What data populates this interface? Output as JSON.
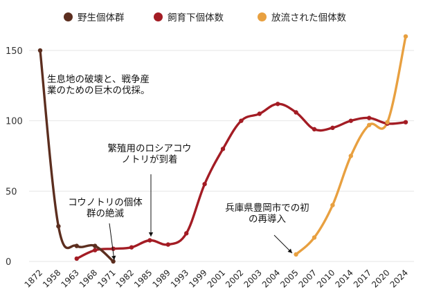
{
  "chart_data": {
    "type": "line",
    "categories": [
      "1872",
      "1958",
      "1963",
      "1968",
      "1971",
      "1982",
      "1985",
      "1989",
      "1993",
      "1999",
      "2001",
      "2002",
      "2003",
      "2004",
      "2005",
      "2007",
      "2010",
      "2014",
      "2017",
      "2020",
      "2024"
    ],
    "ylim": [
      0,
      160
    ],
    "yticks": [
      0,
      50,
      100,
      150
    ],
    "grid": true,
    "legend_position": "top-center",
    "series": [
      {
        "name": "野生個体群",
        "color": "#5c2e1f",
        "points": [
          {
            "x": "1872",
            "y": 150
          },
          {
            "x": "1958",
            "y": 25
          },
          {
            "x": "1963",
            "y": 11
          },
          {
            "x": "1968",
            "y": 11
          },
          {
            "x": "1971",
            "y": 0
          }
        ]
      },
      {
        "name": "飼育下個体数",
        "color": "#a31c24",
        "points": [
          {
            "x": "1963",
            "y": 2
          },
          {
            "x": "1968",
            "y": 8
          },
          {
            "x": "1971",
            "y": 9
          },
          {
            "x": "1982",
            "y": 10
          },
          {
            "x": "1985",
            "y": 15
          },
          {
            "x": "1989",
            "y": 12
          },
          {
            "x": "1993",
            "y": 20
          },
          {
            "x": "1999",
            "y": 55
          },
          {
            "x": "2001",
            "y": 80
          },
          {
            "x": "2002",
            "y": 100
          },
          {
            "x": "2003",
            "y": 105
          },
          {
            "x": "2004",
            "y": 112
          },
          {
            "x": "2005",
            "y": 106
          },
          {
            "x": "2007",
            "y": 94
          },
          {
            "x": "2010",
            "y": 95
          },
          {
            "x": "2014",
            "y": 100
          },
          {
            "x": "2017",
            "y": 102
          },
          {
            "x": "2020",
            "y": 98
          },
          {
            "x": "2024",
            "y": 99
          }
        ]
      },
      {
        "name": "放流された個体数",
        "color": "#e8a040",
        "points": [
          {
            "x": "2005",
            "y": 5
          },
          {
            "x": "2007",
            "y": 17
          },
          {
            "x": "2010",
            "y": 40
          },
          {
            "x": "2014",
            "y": 75
          },
          {
            "x": "2017",
            "y": 97
          },
          {
            "x": "2020",
            "y": 99
          },
          {
            "x": "2024",
            "y": 160
          }
        ]
      }
    ],
    "annotations": [
      {
        "lines": [
          "生息地の破壊と、戦争産",
          "業のための巨木の伐採。"
        ],
        "arrow": false
      },
      {
        "lines": [
          "繁殖用のロシアコウ",
          "ノトリが到着"
        ],
        "arrow": true
      },
      {
        "lines": [
          "コウノトリの個体",
          "群の絶滅"
        ],
        "arrow": true
      },
      {
        "lines": [
          "兵庫県豊岡市での初",
          "の再導入"
        ],
        "arrow": true
      }
    ]
  }
}
